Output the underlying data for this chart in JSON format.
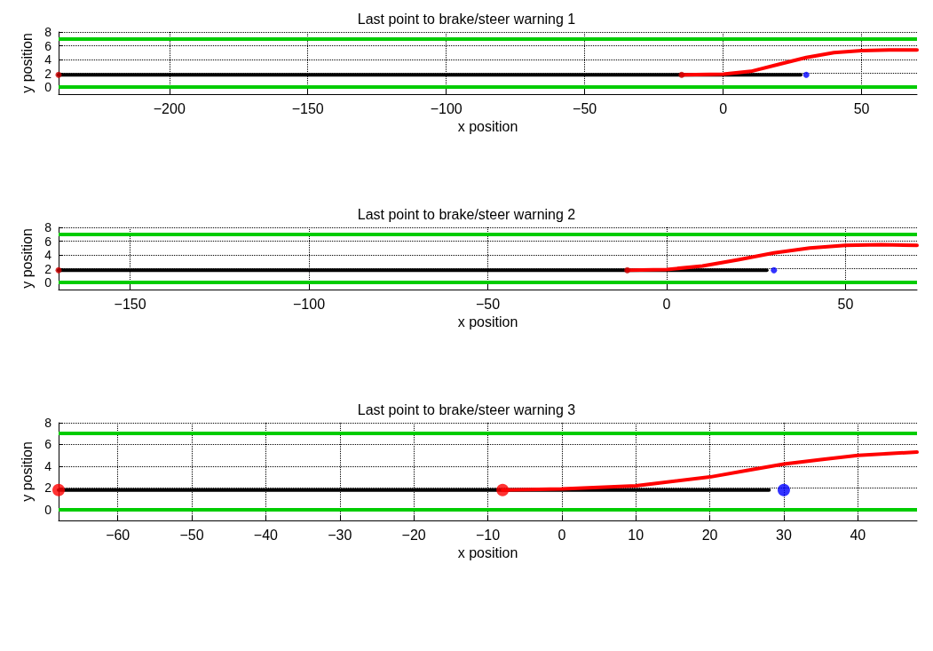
{
  "chart_data": [
    {
      "type": "line",
      "title": "Last point to brake/steer warning 1",
      "xlabel": "x position",
      "ylabel": "y position",
      "xlim": [
        -240,
        70
      ],
      "xticks": [
        -200,
        -150,
        -100,
        -50,
        0,
        50
      ],
      "ylim": [
        -1,
        8
      ],
      "yticks": [
        0,
        2,
        4,
        6,
        8
      ],
      "grid": true,
      "line_style": "solid",
      "ref_lines": [
        {
          "axis": "y",
          "value": 0,
          "color": "#00cc00"
        },
        {
          "axis": "y",
          "value": 7,
          "color": "#00cc00"
        }
      ],
      "series": [
        {
          "type": "line",
          "color": "#000000",
          "marker": "none",
          "x": [
            -240,
            28
          ],
          "values": [
            1.8,
            1.8
          ]
        },
        {
          "type": "line",
          "color": "#ff0000",
          "marker": "none",
          "x": [
            -15,
            0,
            10,
            20,
            30,
            40,
            50,
            60,
            70
          ],
          "values": [
            1.8,
            1.9,
            2.3,
            3.3,
            4.3,
            5.0,
            5.3,
            5.4,
            5.4
          ]
        },
        {
          "type": "scatter",
          "color": "#cc0000",
          "marker": "circle",
          "x": [
            -240,
            -15
          ],
          "values": [
            1.8,
            1.8
          ]
        },
        {
          "type": "scatter",
          "color": "#0000ff",
          "marker": "circle",
          "x": [
            30
          ],
          "values": [
            1.8
          ]
        }
      ]
    },
    {
      "type": "line",
      "title": "Last point to brake/steer warning 2",
      "xlabel": "x position",
      "ylabel": "y position",
      "xlim": [
        -170,
        70
      ],
      "xticks": [
        -150,
        -100,
        -50,
        0,
        50
      ],
      "ylim": [
        -1,
        8
      ],
      "yticks": [
        0,
        2,
        4,
        6,
        8
      ],
      "grid": true,
      "line_style": "solid",
      "ref_lines": [
        {
          "axis": "y",
          "value": 0,
          "color": "#00cc00"
        },
        {
          "axis": "y",
          "value": 7,
          "color": "#00cc00"
        }
      ],
      "series": [
        {
          "type": "line",
          "color": "#000000",
          "marker": "none",
          "x": [
            -170,
            28
          ],
          "values": [
            1.8,
            1.8
          ]
        },
        {
          "type": "line",
          "color": "#ff0000",
          "marker": "none",
          "x": [
            -11,
            0,
            10,
            20,
            30,
            40,
            50,
            60,
            70
          ],
          "values": [
            1.8,
            1.9,
            2.4,
            3.3,
            4.3,
            5.0,
            5.4,
            5.5,
            5.4
          ]
        },
        {
          "type": "scatter",
          "color": "#cc0000",
          "marker": "circle",
          "x": [
            -170,
            -11
          ],
          "values": [
            1.8,
            1.8
          ]
        },
        {
          "type": "scatter",
          "color": "#0000ff",
          "marker": "circle",
          "x": [
            30
          ],
          "values": [
            1.8
          ]
        }
      ]
    },
    {
      "type": "line",
      "title": "Last point to brake/steer warning 3",
      "xlabel": "x position",
      "ylabel": "y position",
      "xlim": [
        -68,
        48
      ],
      "xticks": [
        -60,
        -50,
        -40,
        -30,
        -20,
        -10,
        0,
        10,
        20,
        30,
        40
      ],
      "ylim": [
        -1,
        8
      ],
      "yticks": [
        0,
        2,
        4,
        6,
        8
      ],
      "grid": true,
      "line_style": "solid",
      "ref_lines": [
        {
          "axis": "y",
          "value": 0,
          "color": "#00cc00"
        },
        {
          "axis": "y",
          "value": 7,
          "color": "#00cc00"
        }
      ],
      "series": [
        {
          "type": "line",
          "color": "#000000",
          "marker": "none",
          "x": [
            -68,
            28
          ],
          "values": [
            1.8,
            1.8
          ]
        },
        {
          "type": "line",
          "color": "#ff0000",
          "marker": "none",
          "x": [
            -8,
            0,
            10,
            20,
            25,
            30,
            35,
            40,
            48
          ],
          "values": [
            1.8,
            1.9,
            2.2,
            3.0,
            3.6,
            4.2,
            4.6,
            5.0,
            5.3
          ]
        },
        {
          "type": "scatter",
          "color": "#ff0000",
          "marker": "circle",
          "x": [
            -68,
            -8
          ],
          "values": [
            1.8,
            1.8
          ]
        },
        {
          "type": "scatter",
          "color": "#0000ff",
          "marker": "circle",
          "x": [
            30
          ],
          "values": [
            1.8
          ]
        }
      ]
    }
  ]
}
